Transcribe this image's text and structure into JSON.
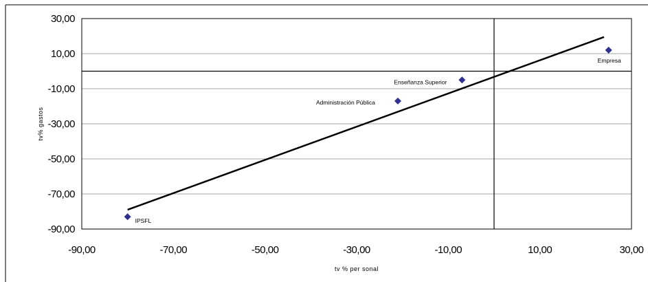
{
  "chart_data": {
    "type": "scatter",
    "xlabel": "tv % per sonal",
    "ylabel": "tv% gastos",
    "xlim": [
      -90,
      30
    ],
    "ylim": [
      -90,
      30
    ],
    "x_ticks": [
      -90,
      -70,
      -50,
      -30,
      -10,
      10,
      30
    ],
    "y_ticks": [
      30,
      10,
      -10,
      -30,
      -50,
      -70,
      -90
    ],
    "x_tick_labels": [
      "-90,00",
      "-70,00",
      "-50,00",
      "-30,00",
      "-10,00",
      "10,00",
      "30,00"
    ],
    "y_tick_labels": [
      "30,00",
      "10,00",
      "-10,00",
      "-30,00",
      "-50,00",
      "-70,00",
      "-90,00"
    ],
    "grid": true,
    "points": [
      {
        "label": "Empresa",
        "x": 25.0,
        "y": 12.0
      },
      {
        "label": "Enseñanza Superior",
        "x": -7.0,
        "y": -5.0
      },
      {
        "label": "Administración Pública",
        "x": -21.0,
        "y": -17.0
      },
      {
        "label": "IPSFL",
        "x": -80.0,
        "y": -83.0
      }
    ],
    "trendline": {
      "x1": -80.0,
      "y1": -79.0,
      "x2": 24.0,
      "y2": 19.5
    },
    "reference_lines": {
      "x": 0,
      "y": 0
    },
    "colors": {
      "marker": "#2e3192",
      "line": "#000000",
      "grid": "#a6a6a6",
      "frame": "#000000"
    }
  }
}
